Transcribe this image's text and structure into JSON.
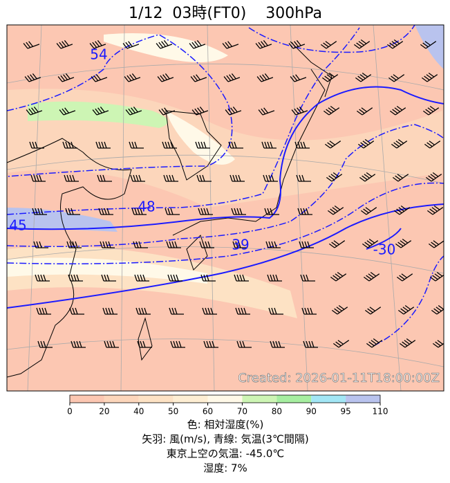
{
  "header": {
    "title": "1/12  03時(FT0)    300hPa"
  },
  "map": {
    "contour_labels": [
      54,
      48,
      45,
      39,
      -30
    ],
    "created": "Created: 2026-01-11T18:00:00Z"
  },
  "colorbar": {
    "ticks": [
      0,
      20,
      40,
      50,
      60,
      70,
      80,
      90,
      95,
      110
    ],
    "colors": [
      "#fcc7b2",
      "#fcd6bb",
      "#fde2c4",
      "#feeed3",
      "#fff9e8",
      "#cdf5b4",
      "#a6eea0",
      "#a2e6f5",
      "#b9c3ee"
    ]
  },
  "captions": [
    "色: 相対湿度(%)",
    "矢羽: 風(m/s),  青線: 気温(3℃間隔)",
    "東京上空の気温: -45.0℃",
    "湿度: 7%"
  ]
}
